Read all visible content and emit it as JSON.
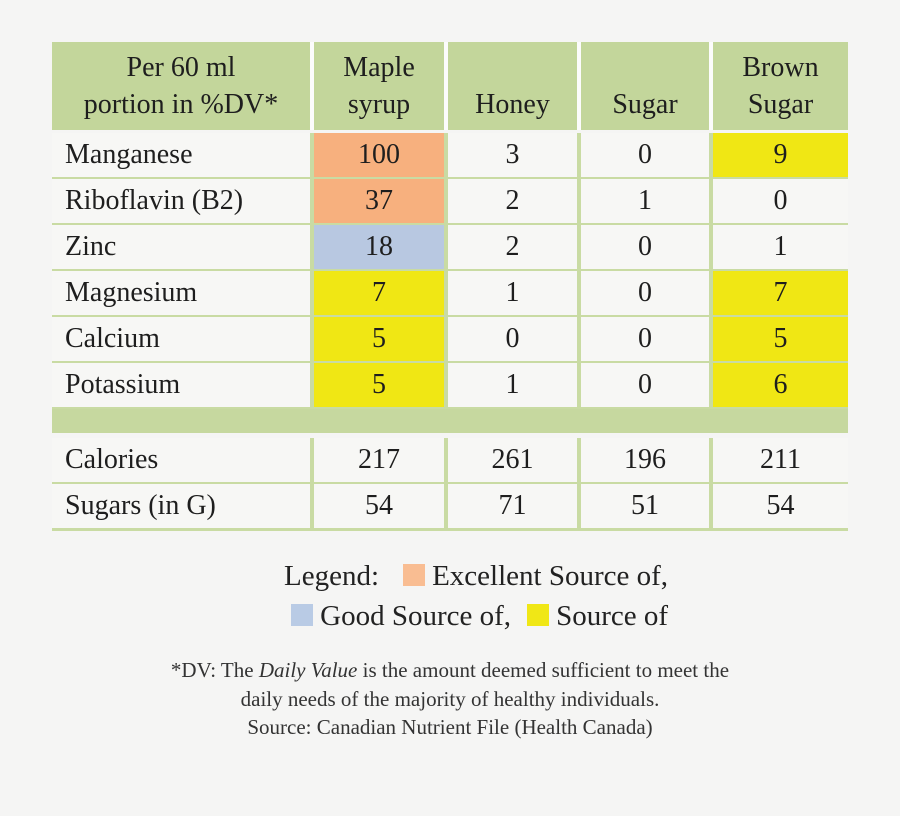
{
  "table": {
    "header": {
      "portion_line1": "Per 60 ml",
      "portion_line2": "portion in %DV*",
      "columns": [
        "Maple syrup",
        "Honey",
        "Sugar",
        "Brown Sugar"
      ]
    },
    "rows": [
      {
        "label": "Manganese",
        "cells": [
          {
            "v": "100",
            "hl": "excellent"
          },
          {
            "v": "3",
            "hl": ""
          },
          {
            "v": "0",
            "hl": ""
          },
          {
            "v": "9",
            "hl": "source"
          }
        ]
      },
      {
        "label": "Riboflavin (B2)",
        "cells": [
          {
            "v": "37",
            "hl": "excellent"
          },
          {
            "v": "2",
            "hl": ""
          },
          {
            "v": "1",
            "hl": ""
          },
          {
            "v": "0",
            "hl": ""
          }
        ]
      },
      {
        "label": "Zinc",
        "cells": [
          {
            "v": "18",
            "hl": "good"
          },
          {
            "v": "2",
            "hl": ""
          },
          {
            "v": "0",
            "hl": ""
          },
          {
            "v": "1",
            "hl": ""
          }
        ]
      },
      {
        "label": "Magnesium",
        "cells": [
          {
            "v": "7",
            "hl": "source"
          },
          {
            "v": "1",
            "hl": ""
          },
          {
            "v": "0",
            "hl": ""
          },
          {
            "v": "7",
            "hl": "source"
          }
        ]
      },
      {
        "label": "Calcium",
        "cells": [
          {
            "v": "5",
            "hl": "source"
          },
          {
            "v": "0",
            "hl": ""
          },
          {
            "v": "0",
            "hl": ""
          },
          {
            "v": "5",
            "hl": "source"
          }
        ]
      },
      {
        "label": "Potassium",
        "cells": [
          {
            "v": "5",
            "hl": "source"
          },
          {
            "v": "1",
            "hl": ""
          },
          {
            "v": "0",
            "hl": ""
          },
          {
            "v": "6",
            "hl": "source"
          }
        ]
      }
    ],
    "summary_rows": [
      {
        "label": "Calories",
        "cells": [
          {
            "v": "217",
            "hl": ""
          },
          {
            "v": "261",
            "hl": ""
          },
          {
            "v": "196",
            "hl": ""
          },
          {
            "v": "211",
            "hl": ""
          }
        ]
      },
      {
        "label": "Sugars (in G)",
        "cells": [
          {
            "v": "54",
            "hl": ""
          },
          {
            "v": "71",
            "hl": ""
          },
          {
            "v": "51",
            "hl": ""
          },
          {
            "v": "54",
            "hl": ""
          }
        ]
      }
    ]
  },
  "legend": {
    "label": "Legend:",
    "items": [
      {
        "text": "Excellent Source of,",
        "color": "#f9bd92"
      },
      {
        "text": "Good Source of,",
        "color": "#b9cbe5"
      },
      {
        "text": "Source of",
        "color": "#f0e716"
      }
    ]
  },
  "footnote": {
    "line1_prefix": "*DV: The ",
    "line1_italic": "Daily Value",
    "line1_rest": " is the amount deemed sufficient to meet the",
    "line2": "daily needs of the majority of healthy individuals.",
    "line3": "Source: Canadian Nutrient File (Health Canada)"
  },
  "colors": {
    "header_green": "#c3d69b",
    "grid_green": "#c9dba3",
    "spacer_green": "#c6d89f",
    "cell_bg": "#f7f7f5",
    "page_bg": "#f5f5f4",
    "excellent_orange": "#f7b07e",
    "good_blue": "#b8c8e1",
    "source_yellow": "#f0e714"
  },
  "chart_data": {
    "type": "table",
    "title": "Per 60 ml portion in %DV*",
    "columns": [
      "Maple syrup",
      "Honey",
      "Sugar",
      "Brown Sugar"
    ],
    "rows": [
      {
        "name": "Manganese",
        "values": [
          100,
          3,
          0,
          9
        ]
      },
      {
        "name": "Riboflavin (B2)",
        "values": [
          37,
          2,
          1,
          0
        ]
      },
      {
        "name": "Zinc",
        "values": [
          18,
          2,
          0,
          1
        ]
      },
      {
        "name": "Magnesium",
        "values": [
          7,
          1,
          0,
          7
        ]
      },
      {
        "name": "Calcium",
        "values": [
          5,
          0,
          0,
          5
        ]
      },
      {
        "name": "Potassium",
        "values": [
          5,
          1,
          0,
          6
        ]
      },
      {
        "name": "Calories",
        "values": [
          217,
          261,
          196,
          211
        ]
      },
      {
        "name": "Sugars (in G)",
        "values": [
          54,
          71,
          51,
          54
        ]
      }
    ],
    "highlights": {
      "excellent_source_of": [
        [
          "Manganese",
          "Maple syrup"
        ],
        [
          "Riboflavin (B2)",
          "Maple syrup"
        ]
      ],
      "good_source_of": [
        [
          "Zinc",
          "Maple syrup"
        ]
      ],
      "source_of": [
        [
          "Manganese",
          "Brown Sugar"
        ],
        [
          "Magnesium",
          "Maple syrup"
        ],
        [
          "Magnesium",
          "Brown Sugar"
        ],
        [
          "Calcium",
          "Maple syrup"
        ],
        [
          "Calcium",
          "Brown Sugar"
        ],
        [
          "Potassium",
          "Maple syrup"
        ],
        [
          "Potassium",
          "Brown Sugar"
        ]
      ]
    },
    "legend_position": "below-table",
    "legend": [
      "Excellent Source of",
      "Good Source of",
      "Source of"
    ]
  }
}
